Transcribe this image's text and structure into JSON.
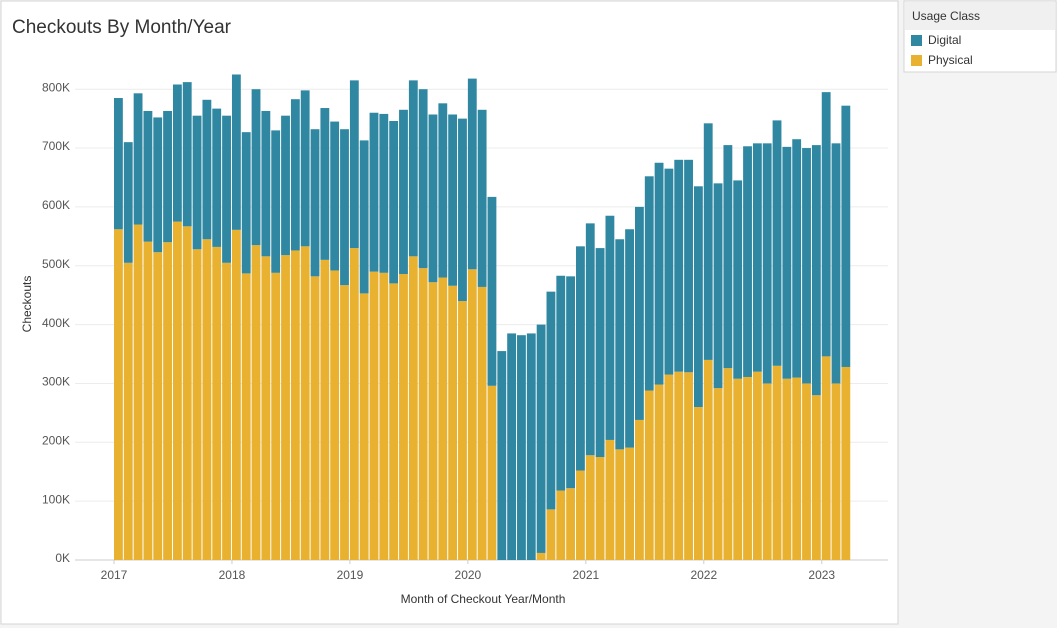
{
  "chart_data": {
    "type": "stacked_bar",
    "title": "Checkouts By Month/Year",
    "x_label": "Month of Checkout Year/Month",
    "y_label": "Checkouts",
    "legend_title": "Usage Class",
    "legend": "right-top",
    "categories": [
      "2017",
      null,
      null,
      null,
      null,
      null,
      null,
      null,
      null,
      null,
      null,
      null,
      "2018",
      null,
      null,
      null,
      null,
      null,
      null,
      null,
      null,
      null,
      null,
      null,
      "2019",
      null,
      null,
      null,
      null,
      null,
      null,
      null,
      null,
      null,
      null,
      null,
      "2020",
      null,
      null,
      null,
      null,
      null,
      null,
      null,
      null,
      null,
      null,
      null,
      "2021",
      null,
      null,
      null,
      null,
      null,
      null,
      null,
      null,
      null,
      null,
      null,
      "2022",
      null,
      null,
      null,
      null,
      null,
      null,
      null,
      null,
      null,
      null,
      null,
      "2023",
      null,
      null
    ],
    "series": [
      {
        "name": "Physical",
        "color": "#e9b130",
        "values": [
          562000,
          505000,
          570000,
          541000,
          523000,
          540000,
          575000,
          567000,
          528000,
          545000,
          532000,
          505000,
          561000,
          487000,
          535000,
          516000,
          488000,
          518000,
          526000,
          533000,
          482000,
          510000,
          492000,
          467000,
          530000,
          453000,
          490000,
          488000,
          470000,
          486000,
          516000,
          496000,
          472000,
          480000,
          466000,
          440000,
          494000,
          464000,
          296000,
          0,
          0,
          0,
          0,
          12000,
          86000,
          118000,
          122000,
          152000,
          178000,
          175000,
          204000,
          188000,
          191000,
          238000,
          288000,
          298000,
          315000,
          320000,
          319000,
          260000,
          340000,
          292000,
          326000,
          308000,
          311000,
          320000,
          300000,
          330000,
          308000,
          310000,
          300000,
          280000,
          346000,
          300000,
          328000
        ]
      },
      {
        "name": "Digital",
        "color": "#2f87a1",
        "values": [
          223000,
          205000,
          223000,
          222000,
          229000,
          223000,
          233000,
          245000,
          227000,
          237000,
          235000,
          250000,
          264000,
          240000,
          265000,
          247000,
          242000,
          237000,
          257000,
          265000,
          250000,
          258000,
          253000,
          265000,
          285000,
          260000,
          270000,
          270000,
          276000,
          279000,
          299000,
          304000,
          285000,
          296000,
          291000,
          310000,
          324000,
          301000,
          321000,
          355000,
          385000,
          382000,
          385000,
          388000,
          370000,
          365000,
          360000,
          381000,
          394000,
          355000,
          381000,
          357000,
          371000,
          362000,
          364000,
          377000,
          350000,
          360000,
          361000,
          375000,
          402000,
          348000,
          379000,
          337000,
          392000,
          388000,
          408000,
          417000,
          394000,
          405000,
          400000,
          425000,
          449000,
          408000,
          444000
        ]
      }
    ],
    "ylim": [
      0,
      870000
    ],
    "yticks": [
      {
        "value": 0,
        "label": "0K"
      },
      {
        "value": 100000,
        "label": "100K"
      },
      {
        "value": 200000,
        "label": "200K"
      },
      {
        "value": 300000,
        "label": "300K"
      },
      {
        "value": 400000,
        "label": "400K"
      },
      {
        "value": 500000,
        "label": "500K"
      },
      {
        "value": 600000,
        "label": "600K"
      },
      {
        "value": 700000,
        "label": "700K"
      },
      {
        "value": 800000,
        "label": "800K"
      }
    ],
    "grid": true
  }
}
